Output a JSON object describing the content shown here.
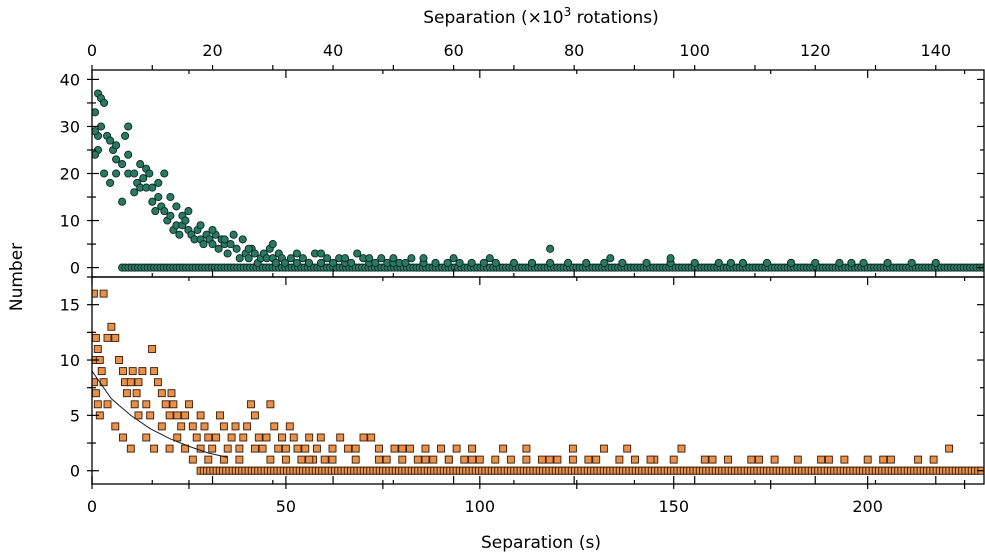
{
  "chart_data": {
    "type": "scatter",
    "ylabel": "Number",
    "x_top": {
      "label_prefix": "Separation (×10",
      "label_sup": "3",
      "label_suffix": " rotations)",
      "range": [
        0,
        148
      ],
      "ticks": [
        0,
        20,
        40,
        60,
        80,
        100,
        120,
        140
      ]
    },
    "x_bottom": {
      "label": "Separation (s)",
      "range": [
        0,
        230
      ],
      "ticks": [
        0,
        50,
        100,
        150,
        200
      ]
    },
    "panels": [
      {
        "name": "top",
        "marker": "circle",
        "color": "#2a7a62",
        "edge_color": "#0b2a20",
        "ylim": [
          -2,
          42
        ],
        "yticks": [
          0,
          10,
          20,
          30,
          40
        ],
        "x_unit": "rotations_e3",
        "points": [
          [
            0.5,
            33
          ],
          [
            1,
            37
          ],
          [
            1.5,
            36
          ],
          [
            2,
            35
          ],
          [
            1,
            25
          ],
          [
            0.5,
            24
          ],
          [
            1.5,
            30
          ],
          [
            2.5,
            28
          ],
          [
            3,
            27
          ],
          [
            3.5,
            25
          ],
          [
            4,
            26
          ],
          [
            4,
            23
          ],
          [
            5,
            22
          ],
          [
            5.5,
            28
          ],
          [
            6,
            30
          ],
          [
            6,
            20
          ],
          [
            7,
            20
          ],
          [
            7.5,
            18
          ],
          [
            8,
            17
          ],
          [
            8.5,
            19
          ],
          [
            9,
            17
          ],
          [
            9,
            21
          ],
          [
            9.5,
            20
          ],
          [
            10,
            17
          ],
          [
            10,
            14
          ],
          [
            10.5,
            12
          ],
          [
            11,
            18
          ],
          [
            11,
            15
          ],
          [
            11.5,
            13
          ],
          [
            12,
            12
          ],
          [
            12.5,
            10
          ],
          [
            13,
            15
          ],
          [
            13,
            11
          ],
          [
            13.5,
            8
          ],
          [
            14,
            13
          ],
          [
            14,
            9
          ],
          [
            14.5,
            7
          ],
          [
            15,
            9
          ],
          [
            15,
            11
          ],
          [
            15.5,
            10
          ],
          [
            16,
            8
          ],
          [
            16.5,
            7
          ],
          [
            17,
            6
          ],
          [
            17.5,
            8
          ],
          [
            18,
            6
          ],
          [
            18,
            9
          ],
          [
            18.5,
            5
          ],
          [
            19,
            7
          ],
          [
            19.5,
            6
          ],
          [
            20,
            5
          ],
          [
            20.5,
            7
          ],
          [
            21,
            4
          ],
          [
            21.5,
            6
          ],
          [
            22,
            5
          ],
          [
            22.5,
            3
          ],
          [
            23,
            5
          ],
          [
            23.5,
            7
          ],
          [
            24,
            4
          ],
          [
            24.5,
            2
          ],
          [
            25,
            6
          ],
          [
            25.5,
            3
          ],
          [
            26,
            2
          ],
          [
            26.5,
            4
          ],
          [
            27,
            3
          ],
          [
            27.5,
            1
          ],
          [
            28,
            2
          ],
          [
            28.5,
            3
          ],
          [
            29,
            2
          ],
          [
            29.5,
            4
          ],
          [
            30,
            2
          ],
          [
            30.5,
            1
          ],
          [
            31,
            3
          ],
          [
            31.5,
            2
          ],
          [
            32,
            1
          ],
          [
            33,
            2
          ],
          [
            34,
            1
          ],
          [
            35,
            2
          ],
          [
            36,
            1
          ],
          [
            37,
            3
          ],
          [
            38,
            1
          ],
          [
            39,
            2
          ],
          [
            40,
            1
          ],
          [
            41,
            2
          ],
          [
            42,
            1
          ],
          [
            43,
            1
          ],
          [
            44,
            3
          ],
          [
            45,
            2
          ],
          [
            46,
            1
          ],
          [
            47,
            1
          ],
          [
            48,
            2
          ],
          [
            49,
            1
          ],
          [
            50,
            1
          ],
          [
            51,
            1
          ],
          [
            52,
            1
          ],
          [
            53,
            2
          ],
          [
            55,
            1
          ],
          [
            57,
            1
          ],
          [
            59,
            1
          ],
          [
            61,
            1
          ],
          [
            63,
            1
          ],
          [
            65,
            1
          ],
          [
            67,
            1
          ],
          [
            70,
            1
          ],
          [
            73,
            1
          ],
          [
            76,
            1
          ],
          [
            79,
            1
          ],
          [
            82,
            1
          ],
          [
            85,
            1
          ],
          [
            88,
            1
          ],
          [
            92,
            1
          ],
          [
            96,
            1
          ],
          [
            100,
            1
          ],
          [
            104,
            1
          ],
          [
            108,
            1
          ],
          [
            112,
            1
          ],
          [
            116,
            1
          ],
          [
            120,
            1
          ],
          [
            124,
            1
          ],
          [
            128,
            1
          ],
          [
            132,
            1
          ],
          [
            136,
            1
          ],
          [
            140,
            1
          ],
          [
            5,
            14
          ],
          [
            4,
            20
          ],
          [
            3,
            18
          ],
          [
            2,
            20
          ],
          [
            1,
            28
          ],
          [
            0.5,
            29
          ],
          [
            6,
            24
          ],
          [
            7,
            16
          ],
          [
            8,
            22
          ],
          [
            12,
            20
          ],
          [
            16,
            12
          ],
          [
            20,
            8
          ],
          [
            22,
            6
          ],
          [
            26,
            4
          ],
          [
            30,
            5
          ],
          [
            34,
            3
          ],
          [
            38,
            3
          ],
          [
            42,
            2
          ],
          [
            46,
            2
          ],
          [
            50,
            2
          ],
          [
            55,
            2
          ],
          [
            60,
            2
          ],
          [
            66,
            2
          ],
          [
            76,
            4
          ],
          [
            86,
            2
          ],
          [
            96,
            2
          ],
          [
            106,
            1
          ],
          [
            116,
            1
          ],
          [
            126,
            1
          ]
        ],
        "zero_band": [
          [
            5,
            148
          ]
        ]
      },
      {
        "name": "bottom",
        "marker": "square",
        "color": "#e8914a",
        "edge_color": "#3a1a05",
        "ylim": [
          -1.2,
          17.5
        ],
        "yticks": [
          0,
          5,
          10,
          15
        ],
        "x_unit": "seconds",
        "points": [
          [
            0.5,
            16
          ],
          [
            3,
            16
          ],
          [
            1,
            12
          ],
          [
            0.5,
            10
          ],
          [
            1.5,
            11
          ],
          [
            2,
            10
          ],
          [
            2.5,
            9
          ],
          [
            3,
            8
          ],
          [
            0.5,
            8
          ],
          [
            1,
            7
          ],
          [
            1.5,
            6
          ],
          [
            4,
            12
          ],
          [
            5,
            13
          ],
          [
            6,
            12
          ],
          [
            7,
            10
          ],
          [
            8,
            9
          ],
          [
            8.5,
            8
          ],
          [
            9,
            7
          ],
          [
            10,
            8
          ],
          [
            10.5,
            9
          ],
          [
            11,
            6
          ],
          [
            11.5,
            7
          ],
          [
            12,
            8
          ],
          [
            13,
            9
          ],
          [
            14,
            6
          ],
          [
            15,
            5
          ],
          [
            15.5,
            11
          ],
          [
            16,
            9
          ],
          [
            17,
            8
          ],
          [
            18,
            7
          ],
          [
            19,
            6
          ],
          [
            20,
            5
          ],
          [
            20.5,
            7
          ],
          [
            21,
            6
          ],
          [
            22,
            5
          ],
          [
            23,
            4
          ],
          [
            24,
            5
          ],
          [
            25,
            6
          ],
          [
            26,
            4
          ],
          [
            27,
            3
          ],
          [
            28,
            5
          ],
          [
            29,
            4
          ],
          [
            30,
            3
          ],
          [
            31,
            2
          ],
          [
            32,
            3
          ],
          [
            33,
            5
          ],
          [
            34,
            4
          ],
          [
            35,
            2
          ],
          [
            36,
            3
          ],
          [
            37,
            4
          ],
          [
            38,
            2
          ],
          [
            39,
            3
          ],
          [
            40,
            4
          ],
          [
            41,
            6
          ],
          [
            42,
            5
          ],
          [
            43,
            3
          ],
          [
            44,
            2
          ],
          [
            45,
            3
          ],
          [
            46,
            6
          ],
          [
            47,
            4
          ],
          [
            48,
            2
          ],
          [
            49,
            3
          ],
          [
            50,
            2
          ],
          [
            51,
            4
          ],
          [
            52,
            3
          ],
          [
            53,
            2
          ],
          [
            54,
            1
          ],
          [
            55,
            2
          ],
          [
            56,
            3
          ],
          [
            57,
            1
          ],
          [
            58,
            2
          ],
          [
            59,
            3
          ],
          [
            60,
            1
          ],
          [
            62,
            2
          ],
          [
            64,
            3
          ],
          [
            66,
            2
          ],
          [
            68,
            1
          ],
          [
            70,
            3
          ],
          [
            72,
            3
          ],
          [
            74,
            2
          ],
          [
            76,
            1
          ],
          [
            78,
            2
          ],
          [
            80,
            1
          ],
          [
            82,
            2
          ],
          [
            84,
            1
          ],
          [
            86,
            2
          ],
          [
            88,
            1
          ],
          [
            90,
            2
          ],
          [
            92,
            1
          ],
          [
            94,
            2
          ],
          [
            96,
            1
          ],
          [
            98,
            2
          ],
          [
            100,
            1
          ],
          [
            104,
            1
          ],
          [
            108,
            1
          ],
          [
            112,
            1
          ],
          [
            116,
            1
          ],
          [
            120,
            1
          ],
          [
            124,
            1
          ],
          [
            128,
            1
          ],
          [
            132,
            2
          ],
          [
            136,
            1
          ],
          [
            140,
            1
          ],
          [
            145,
            1
          ],
          [
            152,
            2
          ],
          [
            158,
            1
          ],
          [
            164,
            1
          ],
          [
            170,
            1
          ],
          [
            176,
            1
          ],
          [
            182,
            1
          ],
          [
            188,
            1
          ],
          [
            194,
            1
          ],
          [
            200,
            1
          ],
          [
            206,
            1
          ],
          [
            213,
            1
          ],
          [
            217,
            1
          ],
          [
            221,
            2
          ],
          [
            2,
            5
          ],
          [
            4,
            6
          ],
          [
            6,
            4
          ],
          [
            8,
            3
          ],
          [
            10,
            2
          ],
          [
            12,
            5
          ],
          [
            14,
            3
          ],
          [
            16,
            2
          ],
          [
            18,
            4
          ],
          [
            20,
            2
          ],
          [
            22,
            3
          ],
          [
            24,
            2
          ],
          [
            26,
            1
          ],
          [
            28,
            2
          ],
          [
            30,
            1
          ],
          [
            34,
            1
          ],
          [
            38,
            1
          ],
          [
            42,
            2
          ],
          [
            46,
            1
          ],
          [
            50,
            1
          ],
          [
            56,
            1
          ],
          [
            62,
            1
          ],
          [
            68,
            2
          ],
          [
            74,
            1
          ],
          [
            80,
            2
          ],
          [
            86,
            1
          ],
          [
            92,
            1
          ],
          [
            98,
            1
          ],
          [
            106,
            2
          ],
          [
            112,
            2
          ],
          [
            118,
            1
          ],
          [
            124,
            2
          ],
          [
            130,
            1
          ],
          [
            138,
            2
          ],
          [
            144,
            1
          ],
          [
            150,
            1
          ],
          [
            160,
            1
          ],
          [
            172,
            1
          ],
          [
            190,
            1
          ],
          [
            204,
            1
          ]
        ],
        "zero_band": [
          [
            28,
            230
          ]
        ],
        "trend_line": [
          [
            0,
            9
          ],
          [
            5,
            6.5
          ],
          [
            10,
            5
          ],
          [
            15,
            3.8
          ],
          [
            20,
            2.9
          ],
          [
            25,
            2.2
          ],
          [
            30,
            1.6
          ],
          [
            35,
            1.2
          ]
        ]
      }
    ]
  }
}
